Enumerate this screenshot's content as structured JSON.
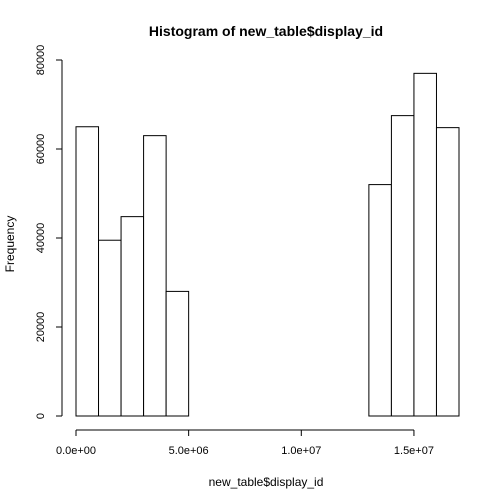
{
  "chart_data": {
    "type": "bar",
    "title": "Histogram of new_table$display_id",
    "xlabel": "new_table$display_id",
    "ylabel": "Frequency",
    "xlim": [
      0,
      17000000
    ],
    "ylim": [
      0,
      80000
    ],
    "x_ticks": [
      {
        "value": 0,
        "label": "0.0e+00"
      },
      {
        "value": 5000000,
        "label": "5.0e+06"
      },
      {
        "value": 10000000,
        "label": "1.0e+07"
      },
      {
        "value": 15000000,
        "label": "1.5e+07"
      }
    ],
    "y_ticks": [
      {
        "value": 0,
        "label": "0"
      },
      {
        "value": 20000,
        "label": "20000"
      },
      {
        "value": 40000,
        "label": "40000"
      },
      {
        "value": 60000,
        "label": "60000"
      },
      {
        "value": 80000,
        "label": "80000"
      }
    ],
    "bin_width": 1000000,
    "bins": [
      {
        "start": 0,
        "value": 65000
      },
      {
        "start": 1000000,
        "value": 39500
      },
      {
        "start": 2000000,
        "value": 44800
      },
      {
        "start": 3000000,
        "value": 63000
      },
      {
        "start": 4000000,
        "value": 28000
      },
      {
        "start": 5000000,
        "value": 0
      },
      {
        "start": 6000000,
        "value": 0
      },
      {
        "start": 7000000,
        "value": 0
      },
      {
        "start": 8000000,
        "value": 0
      },
      {
        "start": 9000000,
        "value": 0
      },
      {
        "start": 10000000,
        "value": 0
      },
      {
        "start": 11000000,
        "value": 0
      },
      {
        "start": 12000000,
        "value": 0
      },
      {
        "start": 13000000,
        "value": 52000
      },
      {
        "start": 14000000,
        "value": 67500
      },
      {
        "start": 15000000,
        "value": 77000
      },
      {
        "start": 16000000,
        "value": 64800
      }
    ],
    "grid": false,
    "legend": "none"
  }
}
